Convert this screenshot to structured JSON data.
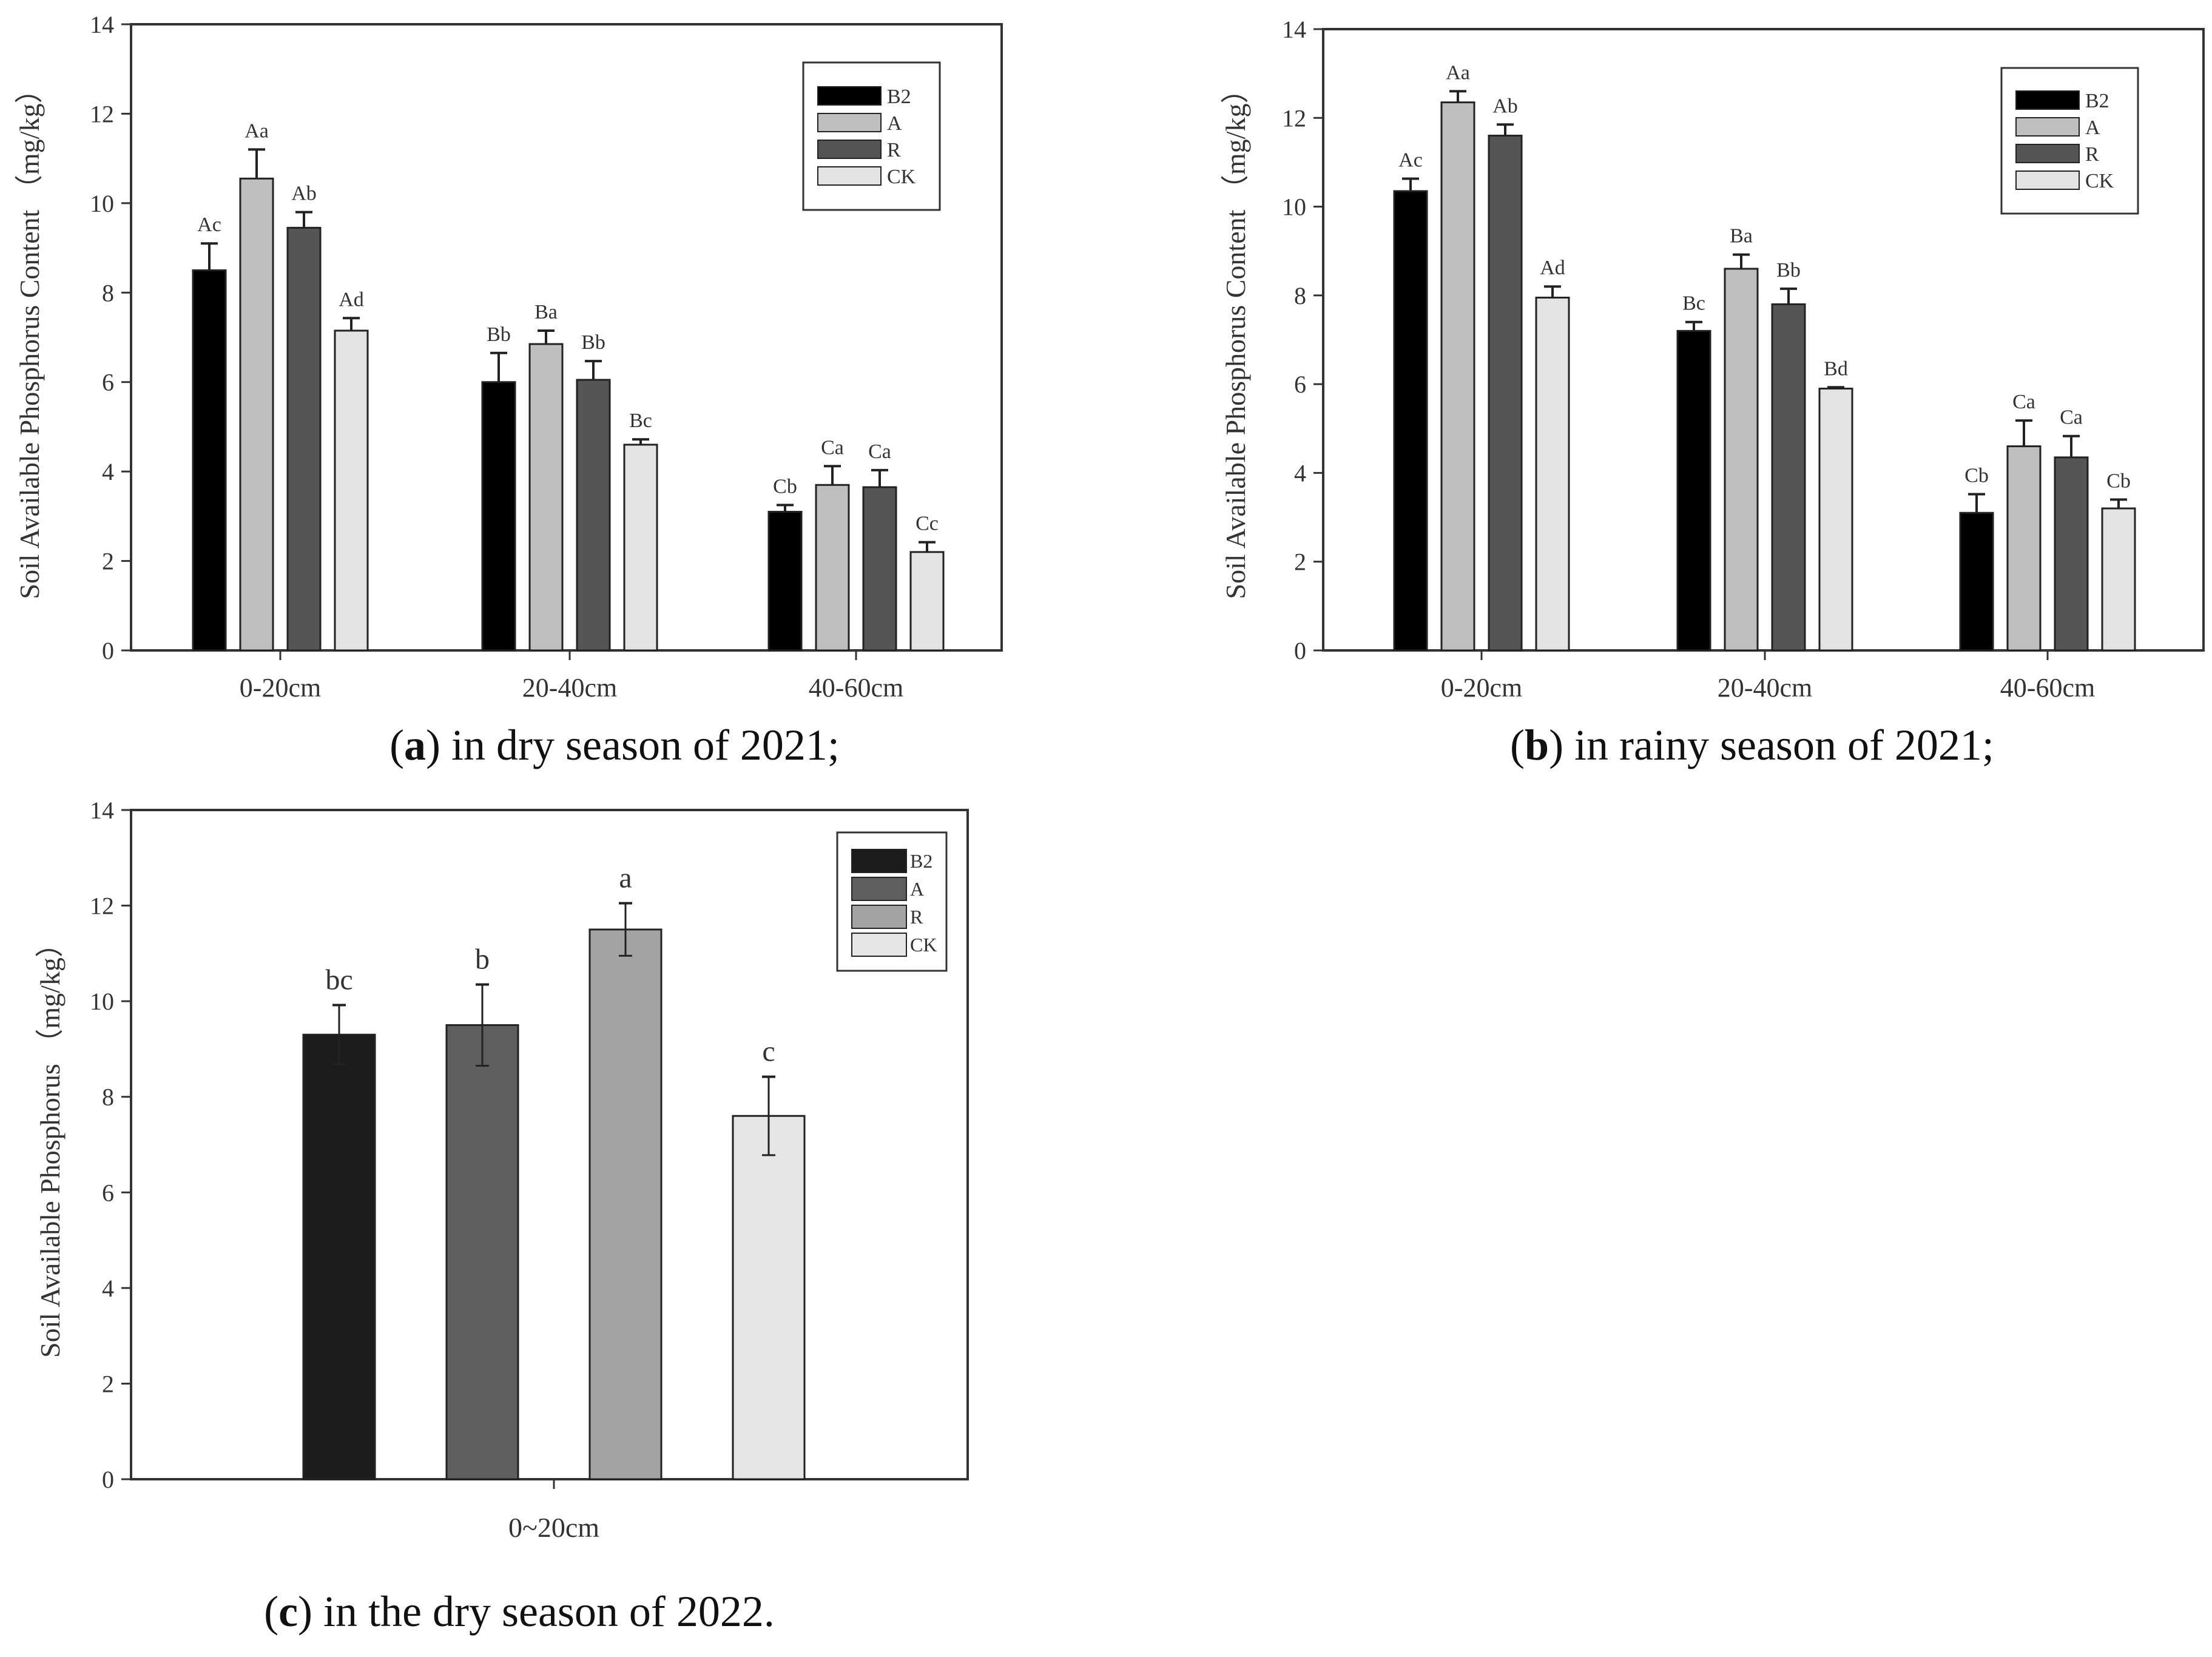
{
  "captions": [
    {
      "letter": "a",
      "rest": ") in dry season of 2021;"
    },
    {
      "letter": "b",
      "rest": ") in rainy season of 2021;"
    },
    {
      "letter": "c",
      "rest": ") in the dry season of 2022."
    }
  ],
  "chart_data": [
    {
      "id": "a",
      "type": "bar",
      "title": "",
      "xlabel": "",
      "ylabel": "Soil Available Phosphorus Content （mg/kg）",
      "ylim": [
        0,
        14
      ],
      "yticks": [
        "0",
        "2",
        "4",
        "6",
        "8",
        "10",
        "12",
        "14"
      ],
      "categories": [
        "0-20cm",
        "20-40cm",
        "40-60cm"
      ],
      "legend": [
        "B2",
        "A",
        "R",
        "CK"
      ],
      "legend_position": "top-right",
      "series": [
        {
          "name": "B2",
          "values": [
            8.5,
            6.0,
            3.1
          ],
          "errors": [
            0.6,
            0.65,
            0.15
          ],
          "labels": [
            "Ac",
            "Bb",
            "Cb"
          ]
        },
        {
          "name": "A",
          "values": [
            10.55,
            6.85,
            3.7
          ],
          "errors": [
            0.65,
            0.3,
            0.42
          ],
          "labels": [
            "Aa",
            "Ba",
            "Ca"
          ]
        },
        {
          "name": "R",
          "values": [
            9.45,
            6.05,
            3.65
          ],
          "errors": [
            0.35,
            0.42,
            0.38
          ],
          "labels": [
            "Ab",
            "Bb",
            "Ca"
          ]
        },
        {
          "name": "CK",
          "values": [
            7.15,
            4.6,
            2.2
          ],
          "errors": [
            0.28,
            0.12,
            0.22
          ],
          "labels": [
            "Ad",
            "Bc",
            "Cc"
          ]
        }
      ]
    },
    {
      "id": "b",
      "type": "bar",
      "title": "",
      "xlabel": "",
      "ylabel": "Soil Available Phosphorus Content （mg/kg）",
      "ylim": [
        0,
        14
      ],
      "yticks": [
        "0",
        "2",
        "4",
        "6",
        "8",
        "10",
        "12",
        "14"
      ],
      "categories": [
        "0-20cm",
        "20-40cm",
        "40-60cm"
      ],
      "legend": [
        "B2",
        "A",
        "R",
        "CK"
      ],
      "legend_position": "top-right",
      "series": [
        {
          "name": "B2",
          "values": [
            10.35,
            7.2,
            3.1
          ],
          "errors": [
            0.28,
            0.2,
            0.42
          ],
          "labels": [
            "Ac",
            "Bc",
            "Cb"
          ]
        },
        {
          "name": "A",
          "values": [
            12.35,
            8.6,
            4.6
          ],
          "errors": [
            0.25,
            0.32,
            0.58
          ],
          "labels": [
            "Aa",
            "Ba",
            "Ca"
          ]
        },
        {
          "name": "R",
          "values": [
            11.6,
            7.8,
            4.35
          ],
          "errors": [
            0.25,
            0.35,
            0.48
          ],
          "labels": [
            "Ab",
            "Bb",
            "Ca"
          ]
        },
        {
          "name": "CK",
          "values": [
            7.95,
            5.9,
            3.2
          ],
          "errors": [
            0.25,
            0.03,
            0.2
          ],
          "labels": [
            "Ad",
            "Bd",
            "Cb"
          ]
        }
      ]
    },
    {
      "id": "c",
      "type": "bar",
      "title": "",
      "xlabel": "",
      "ylabel": "Soil Available Phosphorus （mg/kg）",
      "ylim": [
        0,
        14
      ],
      "yticks": [
        "0",
        "2",
        "4",
        "6",
        "8",
        "10",
        "12",
        "14"
      ],
      "categories": [
        "0~20cm"
      ],
      "legend": [
        "B2",
        "A",
        "R",
        "CK"
      ],
      "legend_position": "top-right",
      "series": [
        {
          "name": "B2",
          "values": [
            9.3
          ],
          "errors": [
            0.62
          ],
          "labels": [
            "bc"
          ]
        },
        {
          "name": "A",
          "values": [
            9.5
          ],
          "errors": [
            0.85
          ],
          "labels": [
            "b"
          ]
        },
        {
          "name": "R",
          "values": [
            11.5
          ],
          "errors": [
            0.55
          ],
          "labels": [
            "a"
          ]
        },
        {
          "name": "CK",
          "values": [
            7.6
          ],
          "errors": [
            0.82
          ],
          "labels": [
            "c"
          ]
        }
      ]
    }
  ],
  "colors": {
    "ab": {
      "B2": "#000000",
      "A": "#bfbfbf",
      "R": "#555555",
      "CK": "#e3e3e3"
    },
    "c": {
      "B2": "#1c1c1c",
      "A": "#5e5e5e",
      "R": "#a3a3a3",
      "CK": "#e6e6e6"
    }
  }
}
